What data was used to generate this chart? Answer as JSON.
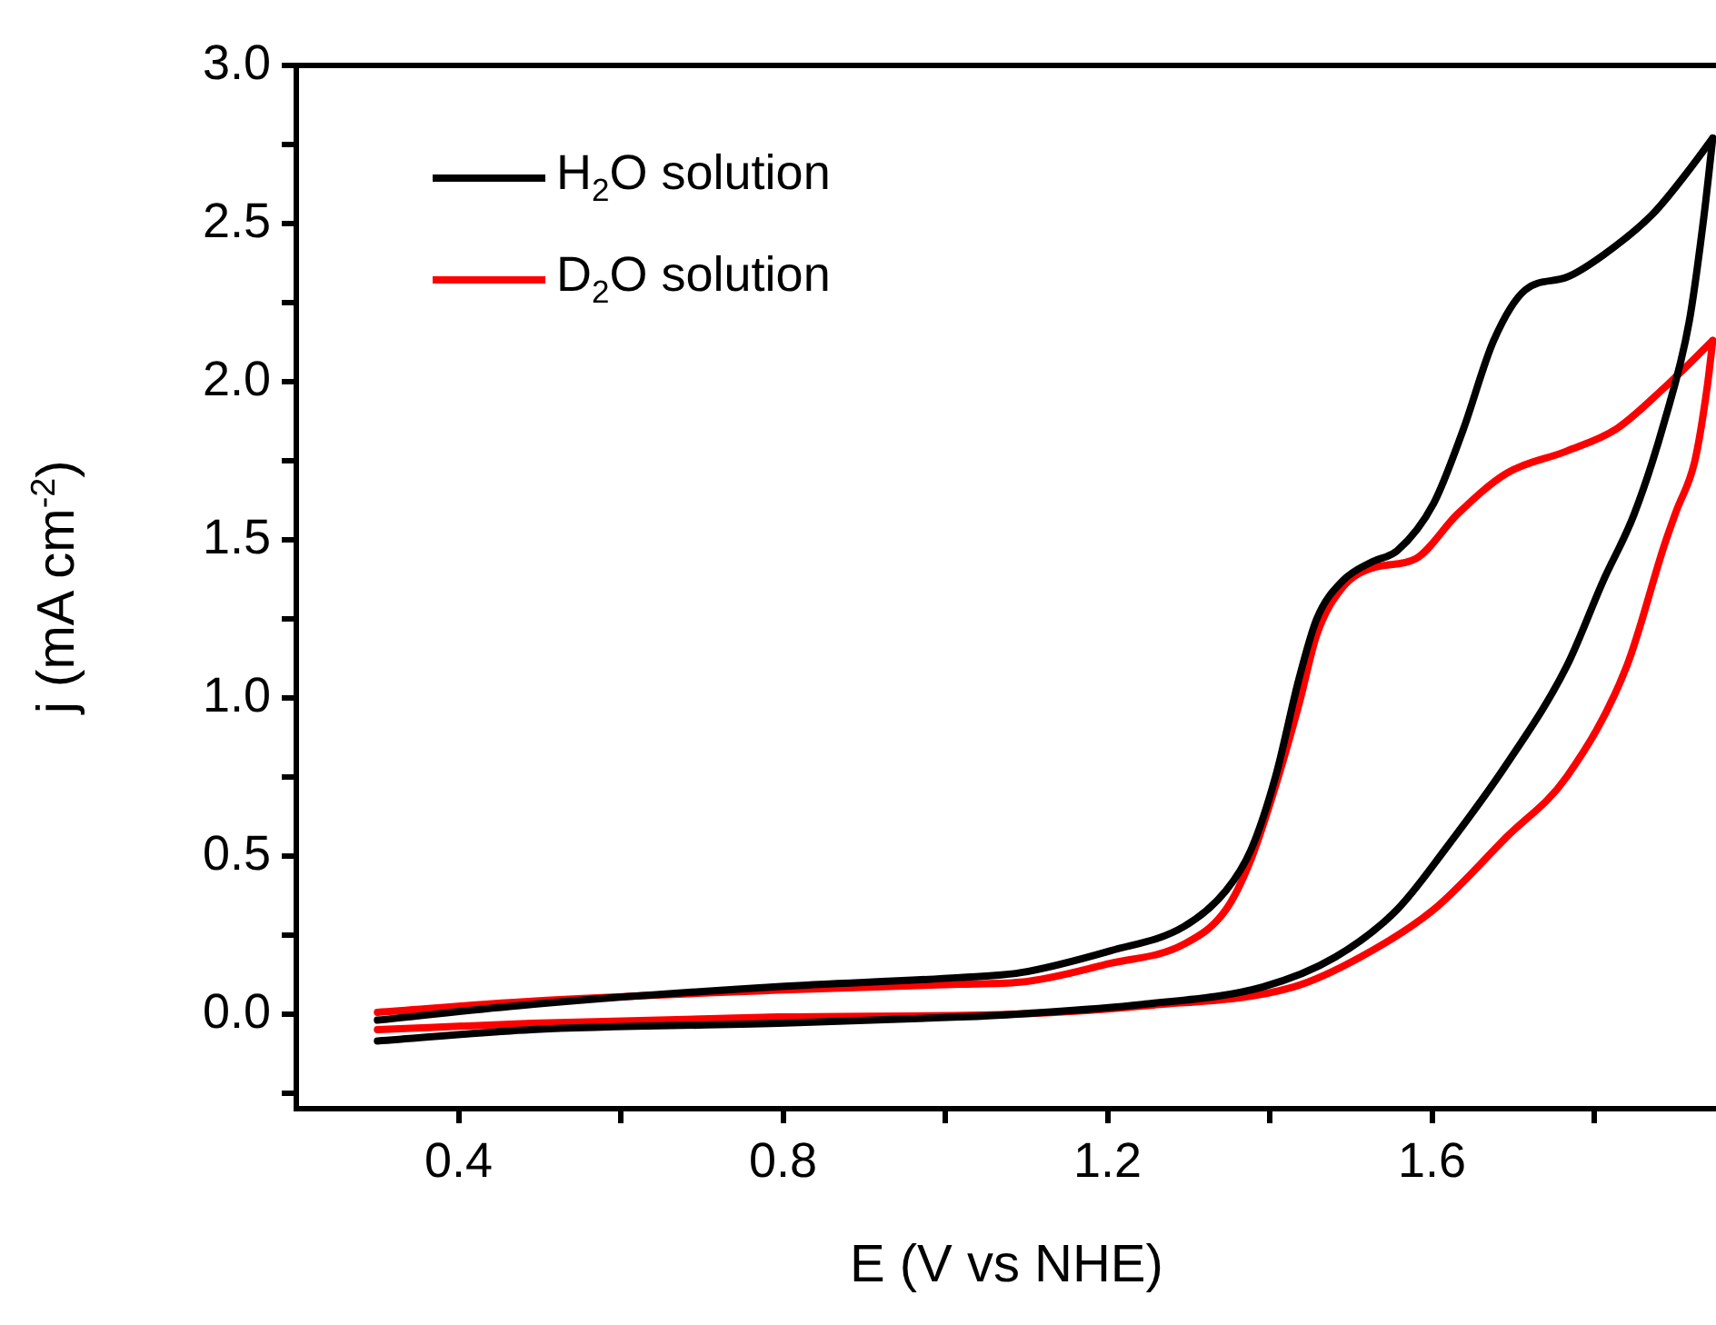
{
  "chart_data": {
    "type": "line",
    "xlabel": "E (V vs NHE)",
    "ylabel": "j (mA cm$^{-2}$)",
    "legend": "top left",
    "marker": "none",
    "line_style": "solid",
    "grid": false,
    "xlim": [
      0.2,
      1.95
    ],
    "xticks": [
      0.4,
      {
        "value": 0.6,
        "label": null
      },
      0.8,
      {
        "value": 1.0,
        "label": null
      },
      1.2,
      {
        "value": 1.4,
        "label": null
      },
      1.6,
      {
        "value": 1.8,
        "label": null
      }
    ],
    "ylim": [
      -0.3,
      3.0
    ],
    "yticks": [
      {
        "value": -0.25,
        "label": null
      },
      {
        "value": 0,
        "label": "0.0"
      },
      {
        "value": 0.25,
        "label": null
      },
      0.5,
      {
        "value": 0.75,
        "label": null
      },
      {
        "value": 1,
        "label": "1.0"
      },
      {
        "value": 1.25,
        "label": null
      },
      1.5,
      {
        "value": 1.75,
        "label": null
      },
      {
        "value": 2,
        "label": "2.0"
      },
      {
        "value": 2.25,
        "label": null
      },
      2.5,
      {
        "value": 2.75,
        "label": null
      },
      {
        "value": 3,
        "label": "3.0"
      }
    ],
    "series": [
      {
        "name": "H$_{2}$O solution",
        "color": "#000000",
        "x": [
          0.3,
          0.49,
          0.793,
          1.018,
          1.092,
          1.204,
          1.294,
          1.346,
          1.377,
          1.407,
          1.436,
          1.458,
          1.49,
          1.526,
          1.557,
          1.602,
          1.638,
          1.676,
          1.715,
          1.766,
          1.811,
          1.872,
          1.917,
          1.946
        ],
        "values": [
          -0.02,
          0.03,
          0.086,
          0.115,
          0.13,
          0.2,
          0.276,
          0.39,
          0.52,
          0.75,
          1.06,
          1.25,
          1.37,
          1.43,
          1.465,
          1.615,
          1.845,
          2.13,
          2.29,
          2.33,
          2.4,
          2.53,
          2.67,
          2.77
        ]
      },
      {
        "color": "#000000",
        "x": [
          0.3,
          0.49,
          0.793,
          1.018,
          1.092,
          1.243,
          1.391,
          1.481,
          1.557,
          1.616,
          1.692,
          1.766,
          1.811,
          1.849,
          1.886,
          1.917,
          1.935,
          1.946
        ],
        "values": [
          -0.086,
          -0.05,
          -0.03,
          -0.01,
          0.0,
          0.03,
          0.085,
          0.18,
          0.33,
          0.52,
          0.79,
          1.1,
          1.37,
          1.58,
          1.87,
          2.19,
          2.52,
          2.77
        ]
      },
      {
        "name": "D$_{2}$O solution",
        "color": "#ff0000",
        "x": [
          0.3,
          0.49,
          0.793,
          1.018,
          1.092,
          1.204,
          1.294,
          1.346,
          1.377,
          1.407,
          1.436,
          1.458,
          1.49,
          1.526,
          1.58,
          1.631,
          1.692,
          1.766,
          1.827,
          1.886,
          1.946
        ],
        "values": [
          0.005,
          0.04,
          0.075,
          0.094,
          0.1,
          0.16,
          0.22,
          0.33,
          0.49,
          0.72,
          0.98,
          1.2,
          1.35,
          1.41,
          1.44,
          1.58,
          1.71,
          1.78,
          1.85,
          1.98,
          2.13
        ]
      },
      {
        "color": "#ff0000",
        "x": [
          0.3,
          0.49,
          0.793,
          1.092,
          1.243,
          1.429,
          1.512,
          1.602,
          1.692,
          1.766,
          1.84,
          1.886,
          1.901,
          1.924,
          1.939,
          1.946
        ],
        "values": [
          -0.05,
          -0.03,
          -0.01,
          0.0,
          0.025,
          0.085,
          0.18,
          0.33,
          0.56,
          0.75,
          1.1,
          1.48,
          1.59,
          1.75,
          1.98,
          2.13
        ]
      }
    ]
  }
}
